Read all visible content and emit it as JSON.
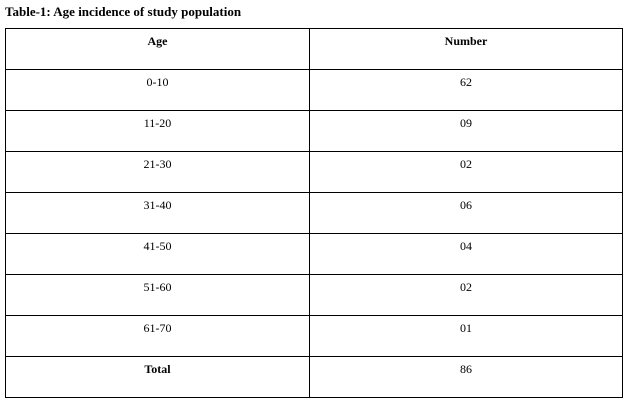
{
  "title": "Table-1: Age incidence of study population",
  "table": {
    "header": [
      "Age",
      "Number"
    ],
    "rows": [
      [
        "0-10",
        "62"
      ],
      [
        "11-20",
        "09"
      ],
      [
        "21-30",
        "02"
      ],
      [
        "31-40",
        "06"
      ],
      [
        "41-50",
        "04"
      ],
      [
        "51-60",
        "02"
      ],
      [
        "61-70",
        "01"
      ],
      [
        "Total",
        "86"
      ]
    ]
  }
}
